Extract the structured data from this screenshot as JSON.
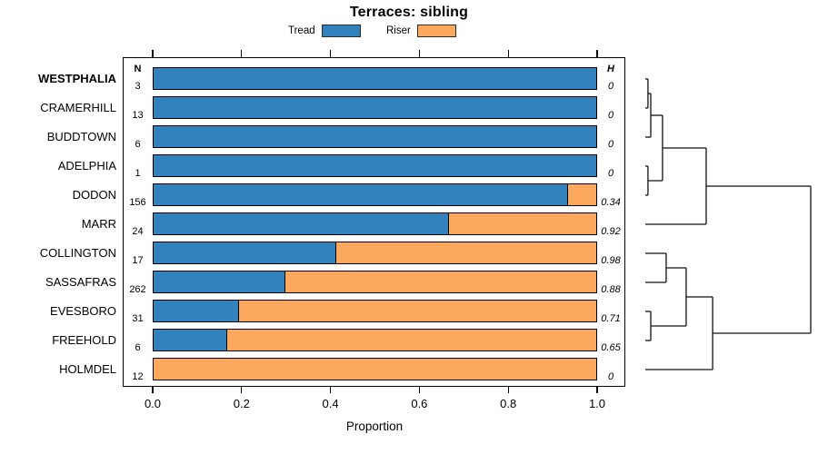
{
  "title": "Terraces: sibling",
  "legend": [
    {
      "label": "Tread",
      "color": "#3182BD"
    },
    {
      "label": "Riser",
      "color": "#FCA95F"
    }
  ],
  "columns": {
    "n_header": "N",
    "h_header": "H"
  },
  "chart_data": {
    "type": "bar",
    "orientation": "horizontal-stacked-proportion",
    "title": "Terraces: sibling",
    "xlabel": "Proportion",
    "xlim": [
      0,
      1
    ],
    "x_ticks": [
      "0.0",
      "0.2",
      "0.4",
      "0.6",
      "0.8",
      "1.0"
    ],
    "grid": false,
    "legend_position": "top",
    "categories": [
      "WESTPHALIA",
      "CRAMERHILL",
      "BUDDTOWN",
      "ADELPHIA",
      "DODON",
      "MARR",
      "COLLINGTON",
      "SASSAFRAS",
      "EVESBORO",
      "FREEHOLD",
      "HOLMDEL"
    ],
    "series": [
      {
        "name": "Tread",
        "color": "#3182BD",
        "values": [
          1,
          1,
          1,
          1,
          0.936,
          0.667,
          0.412,
          0.298,
          0.194,
          0.167,
          0
        ]
      },
      {
        "name": "Riser",
        "color": "#FCA95F",
        "values": [
          0,
          0,
          0,
          0,
          0.064,
          0.333,
          0.588,
          0.702,
          0.806,
          0.833,
          1
        ]
      }
    ],
    "n_values": [
      3,
      13,
      6,
      1,
      156,
      24,
      17,
      262,
      31,
      6,
      12
    ],
    "h_values": [
      "0",
      "0",
      "0",
      "0",
      "0.34",
      "0.92",
      "0.98",
      "0.88",
      "0.71",
      "0.65",
      "0"
    ],
    "highlighted_category": "WESTPHALIA",
    "dendrogram": {
      "merges": [
        {
          "id": "m1",
          "children": [
            "WESTPHALIA",
            "CRAMERHILL"
          ],
          "height": 0.016
        },
        {
          "id": "m2",
          "children": [
            "m1",
            "BUDDTOWN"
          ],
          "height": 0.033
        },
        {
          "id": "m3",
          "children": [
            "ADELPHIA",
            "DODON"
          ],
          "height": 0.016
        },
        {
          "id": "m4",
          "children": [
            "m2",
            "m3"
          ],
          "height": 0.104
        },
        {
          "id": "m5",
          "children": [
            "m4",
            "MARR"
          ],
          "height": 0.368
        },
        {
          "id": "m6",
          "children": [
            "COLLINGTON",
            "SASSAFRAS"
          ],
          "height": 0.126
        },
        {
          "id": "m7",
          "children": [
            "EVESBORO",
            "FREEHOLD"
          ],
          "height": 0.033
        },
        {
          "id": "m8",
          "children": [
            "m6",
            "m7"
          ],
          "height": 0.247
        },
        {
          "id": "m9",
          "children": [
            "m8",
            "HOLMDEL"
          ],
          "height": 0.407
        },
        {
          "id": "m10",
          "children": [
            "m5",
            "m9"
          ],
          "height": 1.0
        }
      ]
    }
  }
}
